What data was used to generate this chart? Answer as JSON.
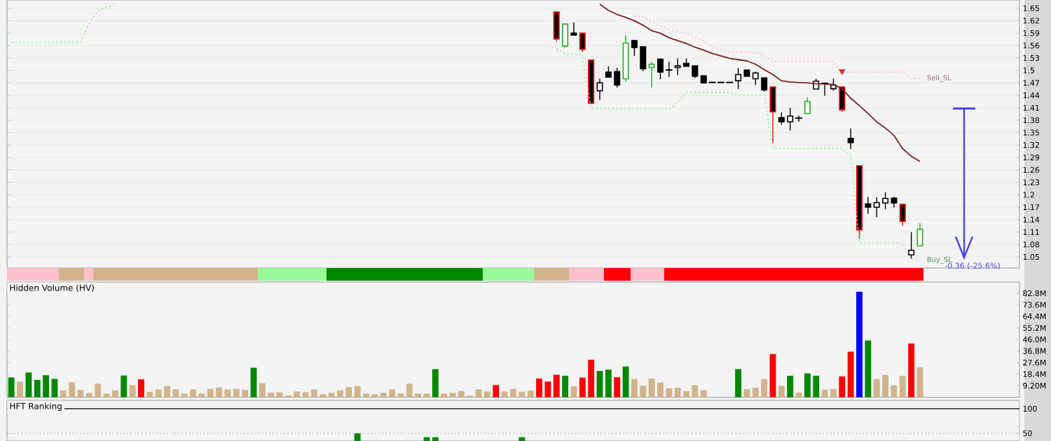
{
  "chart_data": [
    {
      "type": "candlestick",
      "categories": [
        null,
        null,
        null,
        null,
        null,
        null,
        null,
        null,
        null,
        null,
        null,
        null,
        null,
        null,
        null,
        null,
        null,
        null,
        null,
        null,
        null,
        null,
        null,
        null,
        null,
        null,
        null,
        null,
        null,
        null,
        null,
        null,
        null,
        null,
        null,
        null,
        null,
        null,
        null,
        null,
        null,
        null,
        null,
        null,
        null,
        null,
        null,
        null,
        null,
        null,
        null,
        null,
        null,
        null,
        null,
        null,
        null,
        null,
        null,
        null,
        null,
        null,
        null,
        null,
        null,
        null,
        null,
        null,
        null,
        null,
        null,
        null,
        null,
        null,
        null,
        null,
        null,
        null,
        null,
        null,
        null,
        null,
        null,
        null,
        null,
        null,
        null,
        null,
        null,
        null,
        null,
        null,
        null,
        null,
        null,
        null,
        null,
        null,
        null,
        null,
        null,
        null,
        null,
        null,
        null,
        null,
        null,
        null,
        null,
        null,
        null,
        null,
        null,
        null,
        null,
        null,
        null
      ],
      "ohlc": [
        null,
        null,
        null,
        null,
        null,
        null,
        null,
        null,
        null,
        null,
        null,
        null,
        null,
        null,
        null,
        null,
        null,
        null,
        null,
        null,
        null,
        null,
        null,
        null,
        null,
        null,
        null,
        null,
        null,
        null,
        null,
        null,
        null,
        null,
        null,
        null,
        null,
        null,
        null,
        null,
        null,
        null,
        null,
        null,
        null,
        null,
        null,
        null,
        null,
        null,
        null,
        null,
        null,
        null,
        null,
        null,
        null,
        null,
        null,
        null,
        null,
        null,
        null,
        [
          1.641,
          1.641,
          1.57,
          1.576
        ],
        [
          1.559,
          1.612,
          1.555,
          1.612
        ],
        [
          1.59,
          1.616,
          1.585,
          1.585
        ],
        [
          1.59,
          1.59,
          1.545,
          1.551
        ],
        [
          1.525,
          1.525,
          1.421,
          1.421
        ],
        [
          1.451,
          1.48,
          1.429,
          1.47
        ],
        [
          1.496,
          1.51,
          1.484,
          1.484
        ],
        [
          1.497,
          1.506,
          1.459,
          1.465
        ],
        [
          1.48,
          1.585,
          1.473,
          1.566
        ],
        [
          1.572,
          1.574,
          1.535,
          1.555
        ],
        [
          1.557,
          1.557,
          1.498,
          1.504
        ],
        [
          1.507,
          1.521,
          1.459,
          1.515
        ],
        [
          1.527,
          1.529,
          1.479,
          1.496
        ],
        [
          1.501,
          1.521,
          1.484,
          1.501
        ],
        [
          1.507,
          1.529,
          1.489,
          1.511
        ],
        [
          1.517,
          1.529,
          1.51,
          1.51
        ],
        [
          1.511,
          1.511,
          1.482,
          1.486
        ],
        [
          1.487,
          1.487,
          1.47,
          1.47
        ],
        [
          1.471,
          1.471,
          1.471,
          1.471
        ],
        [
          1.471,
          1.471,
          1.471,
          1.471
        ],
        [
          1.471,
          1.471,
          1.471,
          1.471
        ],
        [
          1.475,
          1.506,
          1.455,
          1.49
        ],
        [
          1.501,
          1.501,
          1.486,
          1.486
        ],
        [
          1.48,
          1.497,
          1.465,
          1.494
        ],
        [
          1.482,
          1.482,
          1.449,
          1.453
        ],
        [
          1.46,
          1.46,
          1.325,
          1.4
        ],
        [
          1.386,
          1.399,
          1.369,
          1.376
        ],
        [
          1.376,
          1.41,
          1.355,
          1.39
        ],
        [
          1.385,
          1.391,
          1.376,
          1.385
        ],
        [
          1.396,
          1.435,
          1.396,
          1.425
        ],
        [
          1.455,
          1.48,
          1.455,
          1.474
        ],
        [
          1.469,
          1.469,
          1.439,
          1.469
        ],
        [
          1.456,
          1.48,
          1.451,
          1.465
        ],
        [
          1.46,
          1.46,
          1.4,
          1.405
        ],
        [
          1.336,
          1.36,
          1.31,
          1.326
        ],
        [
          1.27,
          1.27,
          1.094,
          1.115
        ],
        [
          1.178,
          1.195,
          1.154,
          1.17
        ],
        [
          1.17,
          1.194,
          1.146,
          1.181
        ],
        [
          1.18,
          1.206,
          1.165,
          1.191
        ],
        [
          1.192,
          1.195,
          1.169,
          1.18
        ],
        [
          1.177,
          1.177,
          1.125,
          1.136
        ],
        [
          1.055,
          1.11,
          1.046,
          1.066
        ],
        [
          1.077,
          1.131,
          1.077,
          1.117
        ],
        null,
        null,
        null,
        null,
        null,
        null,
        null,
        null,
        null,
        null,
        null
      ],
      "colors": [
        "#000000",
        "#000000",
        "#000000",
        "#000000",
        "#000000",
        "#000000",
        "#000000",
        "#000000",
        "#000000",
        "#000000",
        "#000000",
        "#000000",
        "#000000",
        "#000000",
        "#000000",
        "#000000",
        "#000000",
        "#000000",
        "#000000",
        "#000000",
        "#000000",
        "#000000",
        "#000000",
        "#000000",
        "#000000",
        "#000000",
        "#000000",
        "#000000",
        "#000000",
        "#000000",
        "#000000",
        "#000000",
        "#000000",
        "#000000",
        "#000000",
        "#000000",
        "#000000",
        "#000000",
        "#000000",
        "#000000",
        "#000000",
        "#000000",
        "#000000",
        "#000000",
        "#000000",
        "#000000",
        "#000000",
        "#000000",
        "#000000",
        "#000000",
        "#000000",
        "#000000",
        "#000000",
        "#000000",
        "#000000",
        "#000000",
        "#000000",
        "#000000",
        "#000000",
        "#000000",
        "#000000",
        "#000000",
        "#000000",
        "#ff0000",
        "#22aa22",
        "#000000",
        "#ff0000",
        "#ff0000",
        "#000000",
        "#000000",
        "#000000",
        "#22aa22",
        "#000000",
        "#000000",
        "#22aa22",
        "#000000",
        "#000000",
        "#000000",
        "#000000",
        "#000000",
        "#000000",
        "#000000",
        "#000000",
        "#000000",
        "#000000",
        "#000000",
        "#000000",
        "#000000",
        "#ff0000",
        "#000000",
        "#000000",
        "#000000",
        "#22aa22",
        "#000000",
        "#000000",
        "#000000",
        "#ff0000",
        "#000000",
        "#ff0000",
        "#000000",
        "#000000",
        "#000000",
        "#000000",
        "#ff0000",
        "#000000",
        "#22aa22",
        "#000000",
        "#000000",
        "#000000",
        "#000000",
        "#000000",
        "#000000",
        "#000000",
        "#000000",
        "#000000",
        "#000000",
        "#000000"
      ],
      "series": [
        {
          "type": "line",
          "color": "#7b2323",
          "values": [
            null,
            null,
            null,
            null,
            null,
            null,
            null,
            null,
            null,
            null,
            null,
            null,
            null,
            null,
            null,
            null,
            null,
            null,
            null,
            null,
            null,
            null,
            null,
            null,
            null,
            null,
            null,
            null,
            null,
            null,
            null,
            null,
            null,
            null,
            null,
            null,
            null,
            null,
            null,
            null,
            null,
            null,
            null,
            null,
            null,
            null,
            null,
            null,
            null,
            null,
            null,
            null,
            null,
            null,
            null,
            null,
            null,
            null,
            null,
            null,
            null,
            null,
            null,
            null,
            null,
            null,
            null,
            null,
            1.66,
            1.645,
            1.635,
            1.628,
            1.62,
            1.609,
            1.596,
            1.59,
            1.579,
            1.572,
            1.565,
            1.556,
            1.549,
            1.541,
            1.535,
            1.529,
            1.526,
            1.523,
            1.515,
            1.502,
            1.49,
            1.475,
            1.472,
            1.471,
            1.47,
            1.468,
            1.467,
            1.466,
            1.456,
            1.433,
            1.415,
            1.396,
            1.376,
            1.361,
            1.343,
            1.311,
            1.293,
            1.28,
            null,
            null,
            null,
            null,
            null,
            null,
            null,
            null,
            null,
            null,
            null
          ]
        },
        {
          "type": "line",
          "name": "Buy_SL",
          "color": "#90ee90",
          "line_style": "dotted",
          "values": [
            1.568,
            1.568,
            1.568,
            1.568,
            1.568,
            1.568,
            1.568,
            1.568,
            1.568,
            1.613,
            1.645,
            1.652,
            1.66,
            null,
            null,
            null,
            null,
            null,
            null,
            null,
            null,
            null,
            null,
            null,
            null,
            null,
            null,
            null,
            null,
            null,
            null,
            null,
            null,
            null,
            null,
            null,
            null,
            null,
            null,
            null,
            null,
            null,
            null,
            null,
            null,
            null,
            null,
            null,
            null,
            null,
            null,
            null,
            null,
            null,
            null,
            null,
            null,
            null,
            null,
            null,
            null,
            null,
            null,
            1.552,
            1.54,
            1.539,
            1.535,
            1.409,
            1.407,
            1.407,
            1.407,
            1.407,
            1.407,
            1.407,
            1.407,
            1.407,
            1.407,
            1.423,
            1.447,
            1.447,
            1.447,
            1.447,
            1.447,
            1.447,
            1.44,
            1.44,
            1.44,
            1.44,
            1.312,
            1.312,
            1.312,
            1.312,
            1.312,
            1.312,
            1.312,
            1.312,
            1.312,
            1.293,
            1.084,
            1.084,
            1.084,
            1.084,
            1.084,
            1.084,
            1.045,
            1.042,
            null,
            null,
            null,
            null,
            null,
            null,
            null,
            null,
            null,
            null,
            null
          ]
        },
        {
          "type": "line",
          "name": "Sell_SL",
          "color": "#ffb6c1",
          "line_style": "dotted",
          "values": [
            null,
            null,
            null,
            null,
            null,
            null,
            null,
            null,
            null,
            null,
            null,
            null,
            null,
            null,
            null,
            null,
            null,
            null,
            null,
            null,
            null,
            null,
            null,
            null,
            null,
            null,
            null,
            null,
            null,
            null,
            null,
            null,
            null,
            null,
            null,
            null,
            null,
            null,
            null,
            null,
            null,
            null,
            null,
            null,
            null,
            null,
            null,
            null,
            null,
            null,
            null,
            null,
            null,
            null,
            null,
            null,
            null,
            null,
            null,
            null,
            null,
            null,
            null,
            null,
            null,
            null,
            null,
            null,
            null,
            null,
            null,
            null,
            1.631,
            1.629,
            1.617,
            1.608,
            1.599,
            1.594,
            1.589,
            1.581,
            1.572,
            1.559,
            1.55,
            1.544,
            1.544,
            1.544,
            1.544,
            1.535,
            1.522,
            1.522,
            1.522,
            1.522,
            1.522,
            1.522,
            1.522,
            1.522,
            1.496,
            1.496,
            1.496,
            1.496,
            1.496,
            1.496,
            1.496,
            1.496,
            1.481,
            1.481,
            null,
            null,
            null,
            null,
            null,
            null,
            null,
            null,
            null,
            null,
            null
          ]
        },
        {
          "type": "scatter",
          "marker": "triangle",
          "color": "#e03030",
          "values": [
            null,
            null,
            null,
            null,
            null,
            null,
            null,
            null,
            null,
            null,
            null,
            null,
            null,
            null,
            null,
            null,
            null,
            null,
            null,
            null,
            null,
            null,
            null,
            null,
            null,
            null,
            null,
            null,
            null,
            null,
            null,
            null,
            null,
            null,
            null,
            null,
            null,
            null,
            null,
            null,
            null,
            null,
            null,
            null,
            null,
            null,
            null,
            null,
            null,
            null,
            null,
            null,
            null,
            null,
            null,
            null,
            null,
            null,
            null,
            null,
            null,
            null,
            null,
            null,
            null,
            null,
            null,
            null,
            null,
            null,
            null,
            null,
            null,
            null,
            null,
            null,
            null,
            null,
            null,
            null,
            null,
            null,
            null,
            null,
            null,
            null,
            null,
            null,
            null,
            null,
            null,
            null,
            null,
            null,
            null,
            null,
            1.498,
            null,
            null,
            null,
            null,
            null,
            null,
            null,
            null,
            null,
            null,
            null,
            null,
            null,
            null,
            null,
            null,
            null,
            null,
            null,
            null
          ]
        }
      ],
      "annotations": [
        "-0.36 (-25.6%)"
      ],
      "ylim": [
        1.023,
        1.67
      ],
      "yticks": [
        1.05,
        1.08,
        1.11,
        1.14,
        1.17,
        1.2,
        1.23,
        1.26,
        1.29,
        1.32,
        1.35,
        1.38,
        1.41,
        1.44,
        1.47,
        1.5,
        1.53,
        1.56,
        1.59,
        1.62,
        1.65
      ],
      "grid": "y",
      "tick_labels": "y"
    },
    {
      "type": "bar",
      "title": "Hidden Volume (HV)",
      "categories": [
        null,
        null,
        null,
        null,
        null,
        null,
        null,
        null,
        null,
        null,
        null,
        null,
        null,
        null,
        null,
        null,
        null,
        null,
        null,
        null,
        null,
        null,
        null,
        null,
        null,
        null,
        null,
        null,
        null,
        null,
        null,
        null,
        null,
        null,
        null,
        null,
        null,
        null,
        null,
        null,
        null,
        null,
        null,
        null,
        null,
        null,
        null,
        null,
        null,
        null,
        null,
        null,
        null,
        null,
        null,
        null,
        null,
        null,
        null,
        null,
        null,
        null,
        null,
        null,
        null,
        null,
        null,
        null,
        null,
        null,
        null,
        null,
        null,
        null,
        null,
        null,
        null,
        null,
        null,
        null,
        null,
        null,
        null,
        null,
        null,
        null,
        null,
        null,
        null,
        null,
        null,
        null,
        null,
        null,
        null,
        null,
        null,
        null,
        null,
        null,
        null,
        null,
        null,
        null,
        null,
        null,
        null,
        null,
        null,
        null,
        null,
        null,
        null,
        null,
        null,
        null,
        null
      ],
      "values": [
        15.7,
        12.4,
        19.7,
        13.8,
        17.6,
        14.6,
        5.4,
        11.9,
        5.9,
        3.5,
        10.8,
        3.0,
        5.4,
        17.3,
        9.7,
        14.3,
        4.3,
        6.2,
        8.9,
        6.2,
        3.0,
        6.2,
        3.0,
        6.7,
        7.8,
        6.2,
        6.7,
        5.9,
        23.5,
        11.3,
        3.7,
        4.0,
        1.3,
        4.6,
        4.0,
        6.2,
        2.4,
        3.5,
        5.4,
        8.1,
        8.9,
        3.0,
        2.3,
        3.5,
        6.2,
        3.0,
        10.8,
        3.0,
        3.0,
        22.4,
        3.0,
        3.5,
        5.0,
        1.3,
        6.2,
        4.6,
        9.7,
        4.6,
        6.7,
        4.4,
        5.3,
        14.9,
        12.5,
        17.9,
        17.1,
        8.7,
        15.6,
        29.9,
        20.9,
        22.0,
        16.0,
        24.5,
        14.5,
        9.1,
        14.9,
        11.7,
        7.2,
        7.6,
        4.9,
        9.5,
        5.7,
        0,
        0,
        0,
        22.4,
        6.5,
        7.6,
        14.5,
        34.4,
        9.1,
        17.1,
        3.7,
        19.0,
        17.1,
        6.1,
        6.5,
        16.6,
        36.3,
        84.0,
        45.2,
        14.5,
        17.9,
        9.5,
        17.1,
        42.8,
        23.9,
        null,
        null,
        null,
        null,
        null,
        null,
        null,
        null,
        null,
        null,
        null
      ],
      "colors": [
        "#008800",
        "#d2b48c",
        "#008800",
        "#008800",
        "#008800",
        "#008800",
        "#d2b48c",
        "#d2b48c",
        "#d2b48c",
        "#d2b48c",
        "#d2b48c",
        "#d2b48c",
        "#d2b48c",
        "#008800",
        "#d2b48c",
        "#ff0000",
        "#d2b48c",
        "#d2b48c",
        "#d2b48c",
        "#d2b48c",
        "#d2b48c",
        "#d2b48c",
        "#d2b48c",
        "#d2b48c",
        "#d2b48c",
        "#d2b48c",
        "#d2b48c",
        "#d2b48c",
        "#008800",
        "#d2b48c",
        "#d2b48c",
        "#d2b48c",
        "#d2b48c",
        "#d2b48c",
        "#d2b48c",
        "#d2b48c",
        "#d2b48c",
        "#d2b48c",
        "#d2b48c",
        "#d2b48c",
        "#d2b48c",
        "#d2b48c",
        "#d2b48c",
        "#d2b48c",
        "#d2b48c",
        "#d2b48c",
        "#d2b48c",
        "#d2b48c",
        "#d2b48c",
        "#008800",
        "#d2b48c",
        "#d2b48c",
        "#d2b48c",
        "#d2b48c",
        "#d2b48c",
        "#d2b48c",
        "#ff0000",
        "#d2b48c",
        "#d2b48c",
        "#d2b48c",
        "#d2b48c",
        "#ff0000",
        "#ff0000",
        "#ff0000",
        "#008800",
        "#d2b48c",
        "#ff0000",
        "#ff0000",
        "#008800",
        "#008800",
        "#ff0000",
        "#008800",
        "#d2b48c",
        "#d2b48c",
        "#d2b48c",
        "#d2b48c",
        "#d2b48c",
        "#d2b48c",
        "#d2b48c",
        "#d2b48c",
        "#d2b48c",
        "#d2b48c",
        "#d2b48c",
        "#d2b48c",
        "#008800",
        "#d2b48c",
        "#d2b48c",
        "#d2b48c",
        "#ff0000",
        "#d2b48c",
        "#008800",
        "#d2b48c",
        "#008800",
        "#008800",
        "#d2b48c",
        "#d2b48c",
        "#ff0000",
        "#ff0000",
        "#0000ff",
        "#008800",
        "#d2b48c",
        "#d2b48c",
        "#d2b48c",
        "#d2b48c",
        "#ff0000",
        "#d2b48c",
        "#d2b48c",
        "#d2b48c",
        "#d2b48c",
        "#d2b48c",
        "#d2b48c",
        "#d2b48c",
        "#d2b48c",
        "#d2b48c",
        "#d2b48c",
        "#d2b48c",
        "#d2b48c"
      ],
      "ylim": [
        0,
        91.7
      ],
      "yticks": [
        {
          "value": 9.2,
          "label": "9.20M"
        },
        {
          "value": 18.4,
          "label": "18.4M"
        },
        {
          "value": 27.6,
          "label": "27.6M"
        },
        {
          "value": 36.8,
          "label": "36.8M"
        },
        {
          "value": 46.0,
          "label": "46.0M"
        },
        {
          "value": 55.2,
          "label": "55.2M"
        },
        {
          "value": 64.4,
          "label": "64.4M"
        },
        {
          "value": 73.6,
          "label": "73.6M"
        },
        {
          "value": 82.8,
          "label": "82.8M"
        }
      ],
      "tick_labels": "y"
    },
    {
      "type": "bar",
      "title": "HFT Ranking",
      "categories": [
        null,
        null,
        null,
        null,
        null,
        null,
        null,
        null,
        null,
        null,
        null,
        null,
        null,
        null,
        null,
        null,
        null,
        null,
        null,
        null,
        null,
        null,
        null,
        null,
        null,
        null,
        null,
        null,
        null,
        null,
        null,
        null,
        null,
        null,
        null,
        null,
        null,
        null,
        null,
        null,
        null,
        null,
        null,
        null,
        null,
        null,
        null,
        null,
        null,
        null,
        null,
        null,
        null,
        null,
        null,
        null,
        null,
        null,
        null,
        null,
        null,
        null,
        null,
        null,
        null,
        null,
        null,
        null,
        null,
        null,
        null,
        null,
        null,
        null,
        null,
        null,
        null,
        null,
        null,
        null,
        null,
        null,
        null,
        null,
        null,
        null,
        null,
        null,
        null,
        null,
        null,
        null,
        null,
        null,
        null,
        null,
        null,
        null,
        null,
        null,
        null,
        null,
        null,
        null,
        null,
        null,
        null,
        null,
        null,
        null,
        null,
        null,
        null,
        null,
        null,
        null,
        null
      ],
      "values": [
        null,
        null,
        null,
        null,
        null,
        null,
        null,
        null,
        null,
        null,
        null,
        null,
        null,
        null,
        null,
        null,
        null,
        null,
        null,
        null,
        null,
        null,
        null,
        null,
        null,
        null,
        null,
        null,
        null,
        null,
        null,
        null,
        null,
        null,
        null,
        null,
        null,
        null,
        null,
        null,
        50,
        null,
        null,
        null,
        null,
        null,
        null,
        null,
        42,
        42,
        null,
        null,
        null,
        null,
        null,
        null,
        null,
        null,
        null,
        42,
        null,
        null,
        null,
        null,
        null,
        null,
        null,
        null,
        null,
        null,
        null,
        null,
        null,
        null,
        null,
        null,
        null,
        null,
        null,
        null,
        null,
        null,
        null,
        null,
        null,
        null,
        null,
        null,
        null,
        null,
        null,
        null,
        null,
        null,
        null,
        null,
        null,
        null,
        null,
        null,
        null,
        null,
        null,
        null,
        null,
        null,
        null,
        null,
        null,
        null,
        null,
        null,
        null,
        null,
        null,
        null,
        null
      ],
      "color": "#008800",
      "ylim": [
        34.3,
        117
      ],
      "yticks": [
        50,
        100
      ],
      "ref_lines": [
        {
          "axis": "y",
          "value": 100,
          "color": "#000000",
          "line_style": "solid"
        },
        {
          "axis": "y",
          "value": 50,
          "color": "#888888",
          "line_style": "dotted"
        }
      ],
      "tick_labels": "y"
    }
  ]
}
